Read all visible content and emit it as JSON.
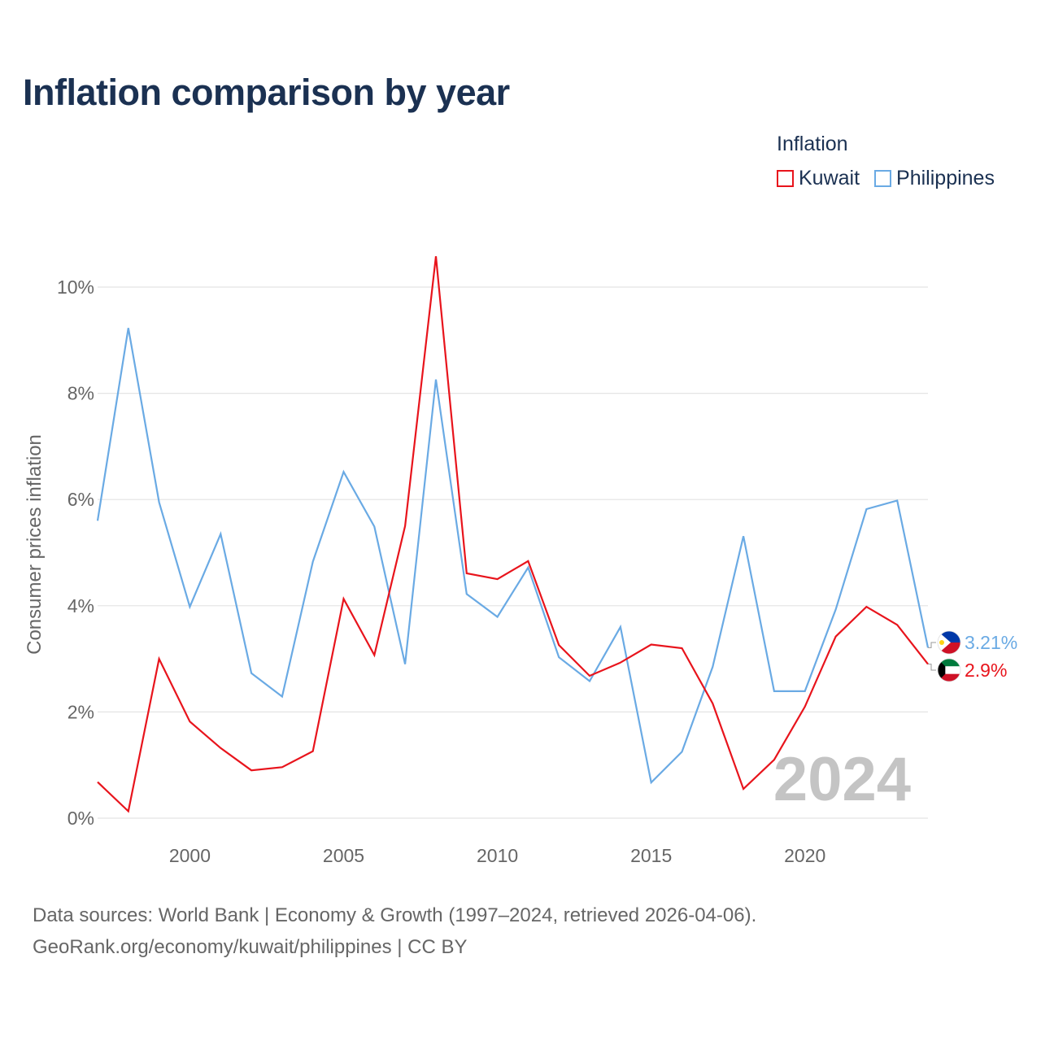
{
  "title": "Inflation comparison by year",
  "legend": {
    "title": "Inflation",
    "items": [
      {
        "label": "Kuwait",
        "color": "#e8141c"
      },
      {
        "label": "Philippines",
        "color": "#6aaae4"
      }
    ]
  },
  "chart_data": {
    "type": "line",
    "title": "Inflation comparison by year",
    "xlabel": "",
    "ylabel": "Consumer prices inflation",
    "xlim": [
      1997,
      2024
    ],
    "ylim": [
      0,
      10
    ],
    "yticks": [
      0,
      2,
      4,
      6,
      8,
      10
    ],
    "ytick_labels": [
      "0%",
      "2%",
      "4%",
      "6%",
      "8%",
      "10%"
    ],
    "xticks": [
      2000,
      2005,
      2010,
      2015,
      2020
    ],
    "xtick_labels": [
      "2000",
      "2005",
      "2010",
      "2015",
      "2020"
    ],
    "grid": true,
    "watermark": "2024",
    "x": [
      1997,
      1998,
      1999,
      2000,
      2001,
      2002,
      2003,
      2004,
      2005,
      2006,
      2007,
      2008,
      2009,
      2010,
      2011,
      2012,
      2013,
      2014,
      2015,
      2016,
      2017,
      2018,
      2019,
      2020,
      2021,
      2022,
      2023,
      2024
    ],
    "series": [
      {
        "name": "Kuwait",
        "color": "#e8141c",
        "end_label": "2.9%",
        "values": [
          0.68,
          0.13,
          3.0,
          1.82,
          1.32,
          0.9,
          0.96,
          1.26,
          4.13,
          3.07,
          5.5,
          10.58,
          4.61,
          4.5,
          4.84,
          3.26,
          2.68,
          2.93,
          3.27,
          3.2,
          2.16,
          0.55,
          1.1,
          2.1,
          3.42,
          3.98,
          3.64,
          2.9
        ]
      },
      {
        "name": "Philippines",
        "color": "#6aaae4",
        "end_label": "3.21%",
        "values": [
          5.6,
          9.23,
          5.95,
          3.98,
          5.35,
          2.73,
          2.29,
          4.83,
          6.52,
          5.49,
          2.9,
          8.26,
          4.22,
          3.79,
          4.72,
          3.03,
          2.58,
          3.6,
          0.67,
          1.25,
          2.85,
          5.31,
          2.39,
          2.39,
          3.93,
          5.82,
          5.98,
          3.21
        ]
      }
    ]
  },
  "footer": {
    "line1": "Data sources: World Bank | Economy & Growth (1997–2024, retrieved 2026-04-06).",
    "line2": "GeoRank.org/economy/kuwait/philippines | CC BY"
  }
}
